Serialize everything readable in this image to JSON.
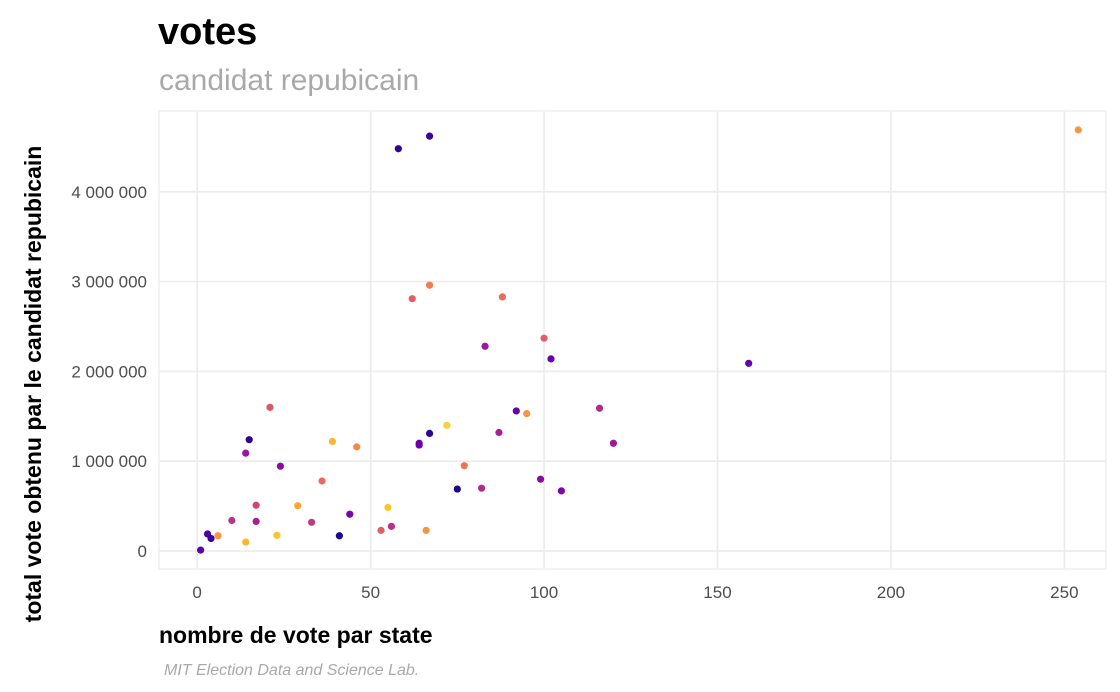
{
  "chart_data": {
    "type": "scatter",
    "title": "votes",
    "subtitle": "candidat repubicain",
    "xlabel": "nombre de vote par state",
    "ylabel": "total vote obtenu par le candidat repubicain",
    "caption": "MIT Election Data and Science Lab.",
    "xlim": [
      -11,
      262
    ],
    "ylim": [
      -200000,
      4900000
    ],
    "x_ticks": [
      0,
      50,
      100,
      150,
      200,
      250
    ],
    "x_tick_labels": [
      "0",
      "50",
      "100",
      "150",
      "200",
      "250"
    ],
    "y_ticks": [
      0,
      1000000,
      2000000,
      3000000,
      4000000
    ],
    "y_tick_labels": [
      "0",
      "1 000 000",
      "2 000 000",
      "3 000 000",
      "4 000 000"
    ],
    "grid": true,
    "legend": "none",
    "points": [
      {
        "x": 1,
        "y": 10000,
        "color": "#5c01a6"
      },
      {
        "x": 3,
        "y": 190000,
        "color": "#4c02a1"
      },
      {
        "x": 4,
        "y": 140000,
        "color": "#3b049a"
      },
      {
        "x": 6,
        "y": 170000,
        "color": "#f89540"
      },
      {
        "x": 10,
        "y": 340000,
        "color": "#b83289"
      },
      {
        "x": 14,
        "y": 100000,
        "color": "#fdb42f"
      },
      {
        "x": 14,
        "y": 1090000,
        "color": "#9c179e"
      },
      {
        "x": 15,
        "y": 1240000,
        "color": "#2c0594"
      },
      {
        "x": 17,
        "y": 330000,
        "color": "#a62098"
      },
      {
        "x": 17,
        "y": 510000,
        "color": "#cc4778"
      },
      {
        "x": 21,
        "y": 1600000,
        "color": "#d8576b"
      },
      {
        "x": 23,
        "y": 175000,
        "color": "#fdc328"
      },
      {
        "x": 24,
        "y": 945000,
        "color": "#8b0aa5"
      },
      {
        "x": 29,
        "y": 505000,
        "color": "#fca636"
      },
      {
        "x": 33,
        "y": 320000,
        "color": "#c03a83"
      },
      {
        "x": 36,
        "y": 780000,
        "color": "#e66c5c"
      },
      {
        "x": 39,
        "y": 1220000,
        "color": "#fdb42f"
      },
      {
        "x": 41,
        "y": 170000,
        "color": "#1b068d"
      },
      {
        "x": 44,
        "y": 410000,
        "color": "#7e03a8"
      },
      {
        "x": 46,
        "y": 1160000,
        "color": "#f48849"
      },
      {
        "x": 53,
        "y": 230000,
        "color": "#de5f65"
      },
      {
        "x": 55,
        "y": 485000,
        "color": "#fdc328"
      },
      {
        "x": 56,
        "y": 275000,
        "color": "#b83289"
      },
      {
        "x": 58,
        "y": 4480000,
        "color": "#2c0594"
      },
      {
        "x": 62,
        "y": 2810000,
        "color": "#de5f65"
      },
      {
        "x": 64,
        "y": 1180000,
        "color": "#7201a8"
      },
      {
        "x": 64,
        "y": 1200000,
        "color": "#6a00a8"
      },
      {
        "x": 66,
        "y": 230000,
        "color": "#f89540"
      },
      {
        "x": 67,
        "y": 4620000,
        "color": "#3b049a"
      },
      {
        "x": 67,
        "y": 1310000,
        "color": "#2c0594"
      },
      {
        "x": 67,
        "y": 2960000,
        "color": "#f07f4f"
      },
      {
        "x": 72,
        "y": 1400000,
        "color": "#f7d03c"
      },
      {
        "x": 75,
        "y": 690000,
        "color": "#1b068d"
      },
      {
        "x": 77,
        "y": 950000,
        "color": "#eb7655"
      },
      {
        "x": 82,
        "y": 700000,
        "color": "#b12a90"
      },
      {
        "x": 83,
        "y": 2280000,
        "color": "#9c179e"
      },
      {
        "x": 87,
        "y": 1320000,
        "color": "#a62098"
      },
      {
        "x": 88,
        "y": 2830000,
        "color": "#e66c5c"
      },
      {
        "x": 92,
        "y": 1560000,
        "color": "#6a00a8"
      },
      {
        "x": 95,
        "y": 1530000,
        "color": "#f89540"
      },
      {
        "x": 99,
        "y": 800000,
        "color": "#8b0aa5"
      },
      {
        "x": 100,
        "y": 2370000,
        "color": "#de5f65"
      },
      {
        "x": 102,
        "y": 2140000,
        "color": "#6a00a8"
      },
      {
        "x": 105,
        "y": 670000,
        "color": "#7e03a8"
      },
      {
        "x": 116,
        "y": 1590000,
        "color": "#b12a90"
      },
      {
        "x": 120,
        "y": 1200000,
        "color": "#9c179e"
      },
      {
        "x": 159,
        "y": 2090000,
        "color": "#6a00a8"
      },
      {
        "x": 254,
        "y": 4690000,
        "color": "#f89540"
      }
    ]
  }
}
